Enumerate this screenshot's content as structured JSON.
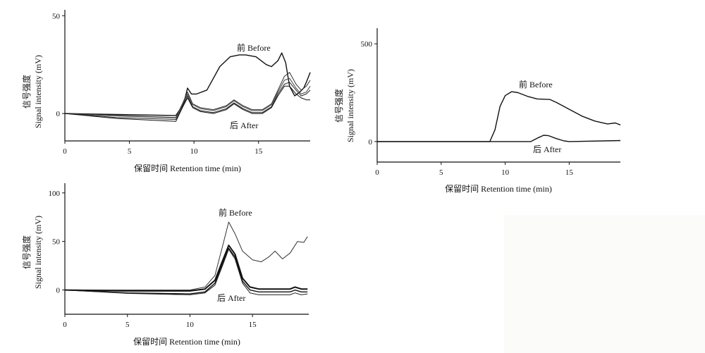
{
  "figure": {
    "ylabel_cn": "信号强度",
    "ylabel_en": "Signal intensity (mV)",
    "xlabel": "保留时间 Retention time (min)"
  },
  "chart_data": [
    {
      "type": "line",
      "xlabel": "保留时间 Retention time (min)",
      "ylabel": "信号强度 Signal intensity (mV)",
      "xlim": [
        0,
        19
      ],
      "ylim": [
        -14,
        53
      ],
      "xticks": [
        "0",
        "5",
        "10",
        "15"
      ],
      "yticks": [
        "0",
        "50"
      ],
      "annotations": [
        "前 Before",
        "后 After"
      ],
      "series": [
        {
          "name": "前 Before",
          "x": [
            0,
            4,
            8.6,
            9.2,
            9.5,
            9.8,
            10.2,
            11,
            12,
            12.8,
            13.5,
            14,
            14.8,
            15.6,
            16,
            16.5,
            16.8,
            17.1,
            17.4,
            17.8,
            18.2,
            18.5,
            18.7,
            19
          ],
          "y": [
            0,
            -0.5,
            -1,
            5,
            13,
            10,
            10,
            12,
            24,
            29,
            30,
            30,
            29,
            25,
            24,
            27,
            31,
            26,
            14,
            9,
            11,
            13,
            16,
            21
          ]
        },
        {
          "name": "后 After (1)",
          "x": [
            0,
            4,
            8.6,
            9.1,
            9.5,
            9.9,
            10.5,
            11.5,
            12.5,
            13.1,
            13.8,
            14.5,
            15.3,
            16,
            16.5,
            17,
            17.4,
            17.9,
            18.3,
            18.7,
            19
          ],
          "y": [
            0,
            -1,
            -2,
            5,
            11,
            5,
            3,
            2,
            4,
            7,
            4,
            2,
            2,
            5,
            12,
            19,
            21,
            15,
            12,
            14,
            17
          ]
        },
        {
          "name": "后 After (2)",
          "x": [
            0,
            4,
            8.6,
            9.1,
            9.5,
            9.9,
            10.5,
            11.5,
            12.5,
            13.1,
            13.8,
            14.5,
            15.3,
            16,
            16.5,
            17,
            17.4,
            17.9,
            18.3,
            18.7,
            19
          ],
          "y": [
            0,
            -1.2,
            -2.2,
            4.5,
            10,
            4.5,
            2.5,
            1.5,
            3.5,
            6.5,
            3.5,
            1.5,
            1.5,
            4.5,
            11,
            17,
            18,
            13,
            10,
            11,
            14
          ]
        },
        {
          "name": "后 After (3)",
          "x": [
            0,
            4,
            8.6,
            9.1,
            9.5,
            9.9,
            10.5,
            11.5,
            12.5,
            13.1,
            13.8,
            14.5,
            15.3,
            16,
            16.5,
            17,
            17.4,
            17.9,
            18.3,
            18.7,
            19
          ],
          "y": [
            0,
            -2,
            -3,
            3.5,
            9,
            3.5,
            1.5,
            0.5,
            2.5,
            5.5,
            2.5,
            0.5,
            0.5,
            3.5,
            10,
            15,
            16,
            12,
            9,
            10,
            12
          ]
        },
        {
          "name": "后 After (4)",
          "x": [
            0,
            4,
            8.6,
            9.1,
            9.5,
            9.9,
            10.5,
            11.5,
            12.5,
            13.1,
            13.8,
            14.5,
            15.3,
            16,
            16.5,
            17,
            17.4,
            17.9,
            18.3,
            18.7,
            19
          ],
          "y": [
            0,
            -2.5,
            -4,
            3,
            8,
            3,
            1,
            0,
            2,
            5,
            2,
            0,
            0,
            3,
            9,
            14,
            14,
            10,
            8,
            7,
            7
          ]
        }
      ]
    },
    {
      "type": "line",
      "xlabel": "保留时间 Retention time (min)",
      "ylabel": "信号强度 Signal intensity (mV)",
      "xlim": [
        0,
        19
      ],
      "ylim": [
        -105,
        580
      ],
      "xticks": [
        "0",
        "5",
        "10",
        "15"
      ],
      "yticks": [
        "0",
        "500"
      ],
      "annotations": [
        "前 Before",
        "后 After"
      ],
      "series": [
        {
          "name": "前 Before",
          "x": [
            0,
            8.8,
            9.2,
            9.6,
            10,
            10.5,
            11,
            11.8,
            12.5,
            13.5,
            14,
            15,
            16,
            17,
            18,
            18.6,
            19
          ],
          "y": [
            0,
            0,
            60,
            180,
            235,
            255,
            250,
            230,
            218,
            215,
            200,
            165,
            130,
            105,
            90,
            95,
            85
          ]
        },
        {
          "name": "后 After",
          "x": [
            0,
            12,
            12.6,
            13,
            13.4,
            14,
            14.6,
            15,
            19
          ],
          "y": [
            0,
            0,
            20,
            32,
            30,
            15,
            3,
            0,
            5
          ]
        }
      ]
    },
    {
      "type": "line",
      "xlabel": "保留时间 Retention time (min)",
      "ylabel": "信号强度 Signal intensity (mV)",
      "xlim": [
        0,
        19.5
      ],
      "ylim": [
        -25,
        110
      ],
      "xticks": [
        "0",
        "5",
        "10",
        "15"
      ],
      "yticks": [
        "0",
        "50",
        "100"
      ],
      "annotations": [
        "前 Before",
        "后 After"
      ],
      "series": [
        {
          "name": "前 Before",
          "x": [
            0,
            5,
            10,
            11.2,
            12,
            12.6,
            13.1,
            13.6,
            14.2,
            15,
            15.7,
            16.3,
            16.8,
            17.4,
            18,
            18.6,
            19.1,
            19.4
          ],
          "y": [
            0,
            0,
            0,
            3,
            15,
            45,
            70,
            58,
            40,
            31,
            29,
            34,
            40,
            32,
            38,
            50,
            49,
            55
          ]
        },
        {
          "name": "后 After (1)",
          "x": [
            0,
            5,
            10,
            11.2,
            12,
            12.6,
            13.1,
            13.6,
            14.2,
            14.8,
            15.5,
            17,
            18,
            18.4,
            18.9,
            19.4
          ],
          "y": [
            0,
            -1,
            -1,
            1,
            10,
            30,
            46,
            37,
            12,
            3,
            1,
            1,
            1,
            3,
            1,
            1
          ]
        },
        {
          "name": "后 After (2)",
          "x": [
            0,
            5,
            10,
            11.2,
            12,
            12.6,
            13.1,
            13.6,
            14.2,
            14.8,
            15.5,
            17,
            18,
            18.4,
            18.9,
            19.4
          ],
          "y": [
            0,
            -3,
            -4,
            -2,
            7,
            27,
            43,
            34,
            9,
            0,
            -2,
            -2,
            -2,
            0,
            -2,
            -2
          ]
        },
        {
          "name": "后 After (3)",
          "x": [
            0,
            5,
            10,
            11.2,
            12,
            12.6,
            13.1,
            13.6,
            14.2,
            14.8,
            15.5,
            17,
            18,
            18.4,
            18.9,
            19.4
          ],
          "y": [
            0,
            -3.5,
            -5,
            -3,
            5,
            25,
            42,
            32,
            7,
            -3,
            -5,
            -5,
            -5,
            -3,
            -5,
            -4
          ]
        }
      ]
    }
  ]
}
